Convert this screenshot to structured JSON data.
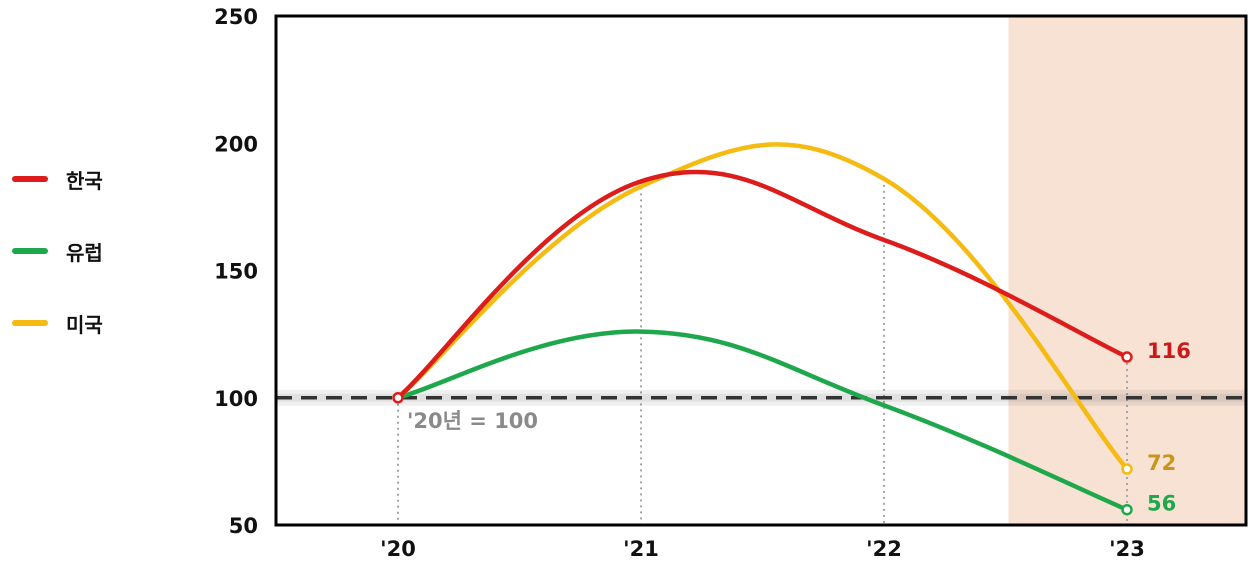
{
  "chart_data": {
    "type": "line",
    "x": [
      "'20",
      "'21",
      "'22",
      "'23"
    ],
    "ylim": [
      50,
      250
    ],
    "yticks": [
      50,
      100,
      150,
      200,
      250
    ],
    "series": [
      {
        "name": "한국",
        "color": "#dd1c1c",
        "values": [
          100,
          185,
          162,
          116
        ],
        "end_label": "116"
      },
      {
        "name": "유럽",
        "color": "#1fa84b",
        "values": [
          100,
          126,
          97,
          56
        ],
        "end_label": "56"
      },
      {
        "name": "미국",
        "color": "#f5bb12",
        "values": [
          100,
          183,
          186,
          72
        ],
        "end_label": "72"
      }
    ],
    "end_label_colors": {
      "116": "#cc1a1a",
      "72": "#c9961a",
      "56": "#1fa84b"
    },
    "baseline": {
      "value": 100,
      "label": "'20년 = 100"
    },
    "highlight_from_x": "'23",
    "highlight_color": "#f7e2d4",
    "grid": false,
    "legend_position": "left"
  }
}
